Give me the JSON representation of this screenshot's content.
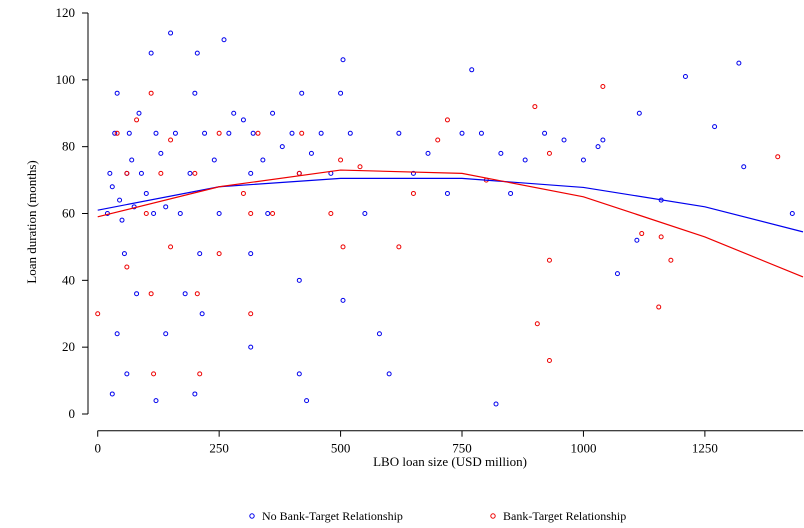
{
  "chart_data": {
    "type": "scatter",
    "x_label": "LBO loan size (USD million)",
    "y_label": "Loan duration (months)",
    "xlim": [
      -20,
      1452
    ],
    "ylim": [
      -5,
      120
    ],
    "xticks": [
      0,
      250,
      500,
      750,
      1000,
      1250
    ],
    "yticks": [
      0,
      20,
      40,
      60,
      80,
      100,
      120
    ],
    "series": [
      {
        "name": "No Bank-Target Relationship",
        "color": "#0000ee",
        "x": [
          20,
          25,
          30,
          35,
          40,
          45,
          50,
          55,
          60,
          65,
          70,
          75,
          80,
          85,
          90,
          100,
          110,
          115,
          120,
          130,
          140,
          150,
          160,
          170,
          180,
          190,
          200,
          205,
          210,
          215,
          220,
          240,
          250,
          260,
          270,
          280,
          300,
          315,
          315,
          315,
          320,
          340,
          350,
          360,
          380,
          400,
          415,
          415,
          415,
          420,
          440,
          460,
          480,
          500,
          505,
          505,
          520,
          550,
          580,
          600,
          620,
          650,
          680,
          720,
          750,
          770,
          790,
          820,
          830,
          850,
          880,
          920,
          960,
          1000,
          1030,
          1040,
          1070,
          1110,
          1115,
          1160,
          1210,
          1270,
          1320,
          1330,
          1430,
          30,
          40,
          60,
          120,
          140,
          200,
          430
        ],
        "values": [
          60,
          72,
          68,
          84,
          96,
          64,
          58,
          48,
          72,
          84,
          76,
          62,
          36,
          90,
          72,
          66,
          108,
          60,
          84,
          78,
          62,
          114,
          84,
          60,
          36,
          72,
          96,
          108,
          48,
          30,
          84,
          76,
          60,
          112,
          84,
          90,
          88,
          72,
          48,
          20,
          84,
          76,
          60,
          90,
          80,
          84,
          72,
          40,
          12,
          96,
          78,
          84,
          72,
          96,
          106,
          34,
          84,
          60,
          24,
          12,
          84,
          72,
          78,
          66,
          84,
          103,
          84,
          3,
          78,
          66,
          76,
          84,
          82,
          76,
          80,
          82,
          42,
          52,
          90,
          64,
          101,
          86,
          105,
          74,
          60,
          6,
          24,
          12,
          4,
          24,
          6,
          4
        ]
      },
      {
        "name": "Bank-Target Relationship",
        "color": "#ee0000",
        "x": [
          0,
          40,
          60,
          80,
          100,
          110,
          110,
          115,
          130,
          150,
          200,
          205,
          210,
          250,
          300,
          315,
          315,
          330,
          360,
          415,
          420,
          480,
          500,
          505,
          540,
          620,
          650,
          700,
          720,
          800,
          900,
          905,
          930,
          930,
          930,
          1040,
          1120,
          1155,
          1160,
          1180,
          1400,
          150,
          60,
          250
        ],
        "values": [
          30,
          84,
          72,
          88,
          60,
          96,
          36,
          12,
          72,
          82,
          72,
          36,
          12,
          84,
          66,
          60,
          30,
          84,
          60,
          72,
          84,
          60,
          76,
          50,
          74,
          50,
          66,
          82,
          88,
          70,
          92,
          27,
          46,
          16,
          78,
          98,
          54,
          32,
          53,
          46,
          77,
          50,
          44,
          48
        ]
      }
    ],
    "fit_lines": [
      {
        "color": "#0000ee",
        "x": [
          0,
          250,
          500,
          750,
          1000,
          1250,
          1452
        ],
        "values": [
          61,
          68,
          70.5,
          70.5,
          67.8,
          62,
          54.5
        ]
      },
      {
        "color": "#ee0000",
        "x": [
          0,
          250,
          500,
          750,
          1000,
          1250,
          1452
        ],
        "values": [
          59,
          68,
          73,
          72,
          65,
          53,
          41
        ]
      }
    ]
  }
}
